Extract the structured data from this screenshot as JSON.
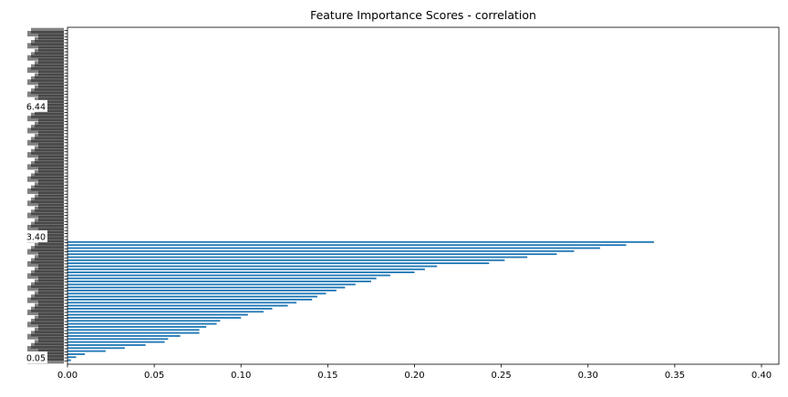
{
  "chart_data": {
    "type": "bar",
    "orientation": "horizontal",
    "title": "Feature Importance Scores - correlation",
    "xlabel": "",
    "ylabel": "",
    "xlim": [
      0,
      0.41
    ],
    "xticks": [
      "0.00",
      "0.05",
      "0.10",
      "0.15",
      "0.20",
      "0.25",
      "0.30",
      "0.35",
      "0.40"
    ],
    "xtick_values": [
      0,
      0.05,
      0.1,
      0.15,
      0.2,
      0.25,
      0.3,
      0.35,
      0.4
    ],
    "bar_color": "#1f77b4",
    "grid": false,
    "legible_ytick_labels": [
      "6.44",
      "3.40",
      "0.05"
    ],
    "values": [
      0.338,
      0.322,
      0.307,
      0.292,
      0.282,
      0.265,
      0.252,
      0.243,
      0.213,
      0.206,
      0.2,
      0.186,
      0.178,
      0.175,
      0.166,
      0.16,
      0.155,
      0.149,
      0.144,
      0.141,
      0.132,
      0.127,
      0.118,
      0.113,
      0.104,
      0.1,
      0.088,
      0.086,
      0.08,
      0.076,
      0.076,
      0.065,
      0.058,
      0.056,
      0.045,
      0.033,
      0.022,
      0.01,
      0.005,
      0.002
    ],
    "zero_rows": 70
  }
}
